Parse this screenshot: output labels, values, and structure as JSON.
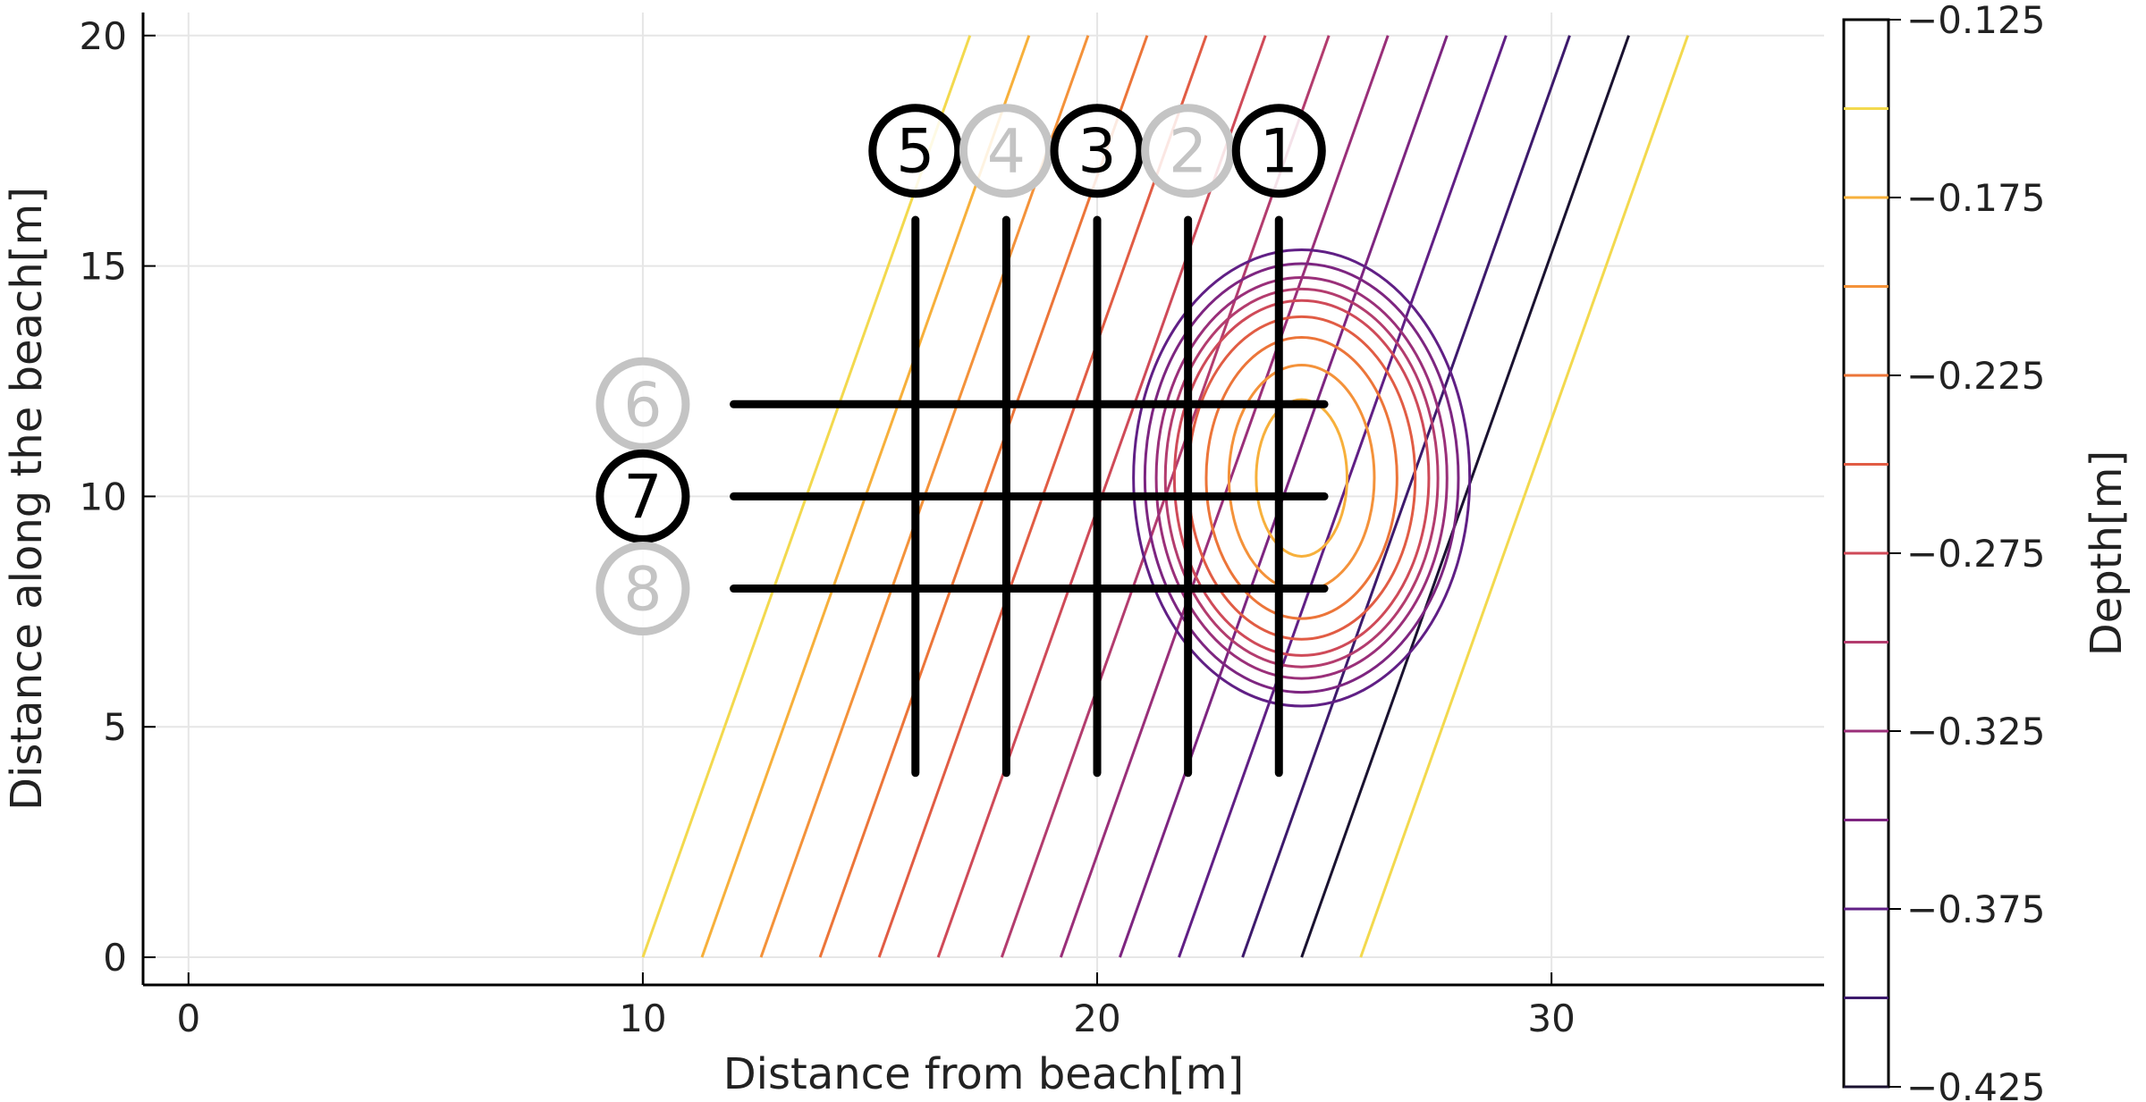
{
  "chart_data": {
    "type": "contour",
    "xlabel": "Distance from beach[m]",
    "ylabel": "Distance along the beach[m]",
    "xlim": [
      -1,
      36
    ],
    "ylim": [
      -0.6,
      20.5
    ],
    "xticks": [
      0,
      10,
      20,
      30
    ],
    "yticks": [
      0,
      5,
      10,
      15,
      20
    ],
    "grid": true,
    "colorbar": {
      "label": "Depth[m]",
      "range": [
        -0.425,
        -0.125
      ],
      "tick_values": [
        -0.125,
        -0.175,
        -0.225,
        -0.275,
        -0.325,
        -0.375,
        -0.425
      ],
      "tick_labels": [
        "−0.125",
        "−0.175",
        "−0.225",
        "−0.275",
        "−0.325",
        "−0.375",
        "−0.425"
      ],
      "levels": [
        -0.15,
        -0.175,
        -0.2,
        -0.225,
        -0.25,
        -0.275,
        -0.3,
        -0.325,
        -0.35,
        -0.375,
        -0.4,
        -0.425
      ],
      "level_colors": [
        "#f3d94e",
        "#f7b03b",
        "#f4923a",
        "#ec7539",
        "#e15c44",
        "#cf4a58",
        "#b33c6e",
        "#9a2f79",
        "#7d2580",
        "#601f85",
        "#3d1a6c",
        "#1a1230"
      ]
    },
    "slope_contours": {
      "x_at_y0": [
        10.0,
        11.3,
        12.6,
        13.9,
        15.2,
        16.5,
        17.9,
        19.2,
        20.5,
        21.8,
        23.2,
        24.5,
        25.8
      ],
      "dx_per_y": 0.36
    },
    "mound": {
      "center": [
        24.5,
        10.4
      ],
      "rings": [
        {
          "rx": 1.0,
          "ry": 1.7
        },
        {
          "rx": 1.6,
          "ry": 2.45
        },
        {
          "rx": 2.1,
          "ry": 3.05
        },
        {
          "rx": 2.5,
          "ry": 3.5
        },
        {
          "rx": 2.8,
          "ry": 3.85
        },
        {
          "rx": 3.0,
          "ry": 4.1
        },
        {
          "rx": 3.2,
          "ry": 4.35
        },
        {
          "rx": 3.45,
          "ry": 4.65
        },
        {
          "rx": 3.7,
          "ry": 4.95
        }
      ]
    },
    "transects": {
      "vertical": [
        {
          "label": "1",
          "x": 24,
          "y_range": [
            4,
            16
          ],
          "active": true
        },
        {
          "label": "2",
          "x": 22,
          "y_range": [
            4,
            16
          ],
          "active": false
        },
        {
          "label": "3",
          "x": 20,
          "y_range": [
            4,
            16
          ],
          "active": true
        },
        {
          "label": "4",
          "x": 18,
          "y_range": [
            4,
            16
          ],
          "active": false
        },
        {
          "label": "5",
          "x": 16,
          "y_range": [
            4,
            16
          ],
          "active": true
        }
      ],
      "horizontal": [
        {
          "label": "6",
          "y": 12,
          "x_range": [
            12,
            25
          ],
          "active": false
        },
        {
          "label": "7",
          "y": 10,
          "x_range": [
            12,
            25
          ],
          "active": true
        },
        {
          "label": "8",
          "y": 8,
          "x_range": [
            12,
            25
          ],
          "active": false
        }
      ],
      "vertical_label_y": 17.5,
      "horizontal_label_x": 10
    }
  }
}
